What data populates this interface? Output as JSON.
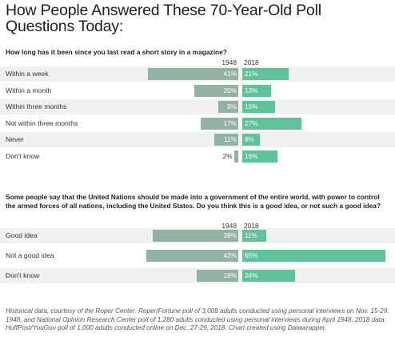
{
  "title": "How People Answered These 70-Year-Old Poll Questions Today:",
  "chart_data": [
    {
      "type": "bar",
      "title": "How long has it been since you last read a short story in a magazine?",
      "series": [
        {
          "name": "1948",
          "values": [
            41,
            20,
            9,
            17,
            11,
            2
          ]
        },
        {
          "name": "2018",
          "values": [
            21,
            13,
            15,
            27,
            8,
            16
          ]
        }
      ],
      "categories": [
        "Within a week",
        "Within a month",
        "Within three months",
        "Not within three months",
        "Never",
        "Don't know"
      ],
      "value_suffix": "%",
      "colors": {
        "1948": "#93b2a6",
        "2018": "#5ec39a"
      }
    },
    {
      "type": "bar",
      "title": "Some people say that the United Nations should be made into a government of the entire world, with power to control the armed forces of all nations, including the United States. Do you think this is a good idea, or not such a good idea?",
      "series": [
        {
          "name": "1948",
          "values": [
            39,
            42,
            19
          ]
        },
        {
          "name": "2018",
          "values": [
            11,
            65,
            24
          ]
        }
      ],
      "categories": [
        "Good idea",
        "Not a good idea",
        "Don't know"
      ],
      "value_suffix": "%",
      "colors": {
        "1948": "#93b2a6",
        "2018": "#5ec39a"
      }
    }
  ],
  "footnote": "Historical data, courtesy of the Roper Center:  Roper/Fortune poll of 3,008 adults conducted using personal interviews on Nov. 15-29, 1948, and National Opinion Research Center poll of 1,280 adults conducted using personal interviews during April 1948. 2018 data: HuffPost/YouGov poll of 1,000 adults conducted online on Dec. 27-29, 2018. Chart created using Datawrapper."
}
